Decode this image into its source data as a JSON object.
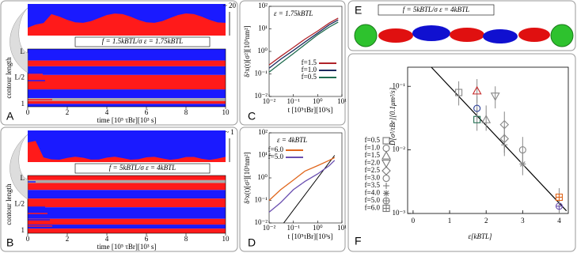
{
  "chart_data": [
    {
      "type": "kymograph",
      "label": "A",
      "annotation": "f = 1.5kBTL/σ   ε = 1.75kBTL",
      "cluster_annotation": "~ 20",
      "ylabel": "contour length",
      "ytick_labels": [
        "L",
        "L/2",
        "1"
      ],
      "xlabel": "time [10⁵ τBr][10³ s]",
      "xlim": [
        0,
        10
      ],
      "xticks": [
        0,
        2,
        4,
        6,
        8,
        10
      ]
    },
    {
      "type": "kymograph",
      "label": "B",
      "annotation": "f = 5kBTL/σ   ε = 4kBTL",
      "cluster_annotation": "~ 1",
      "ylabel": "contour length",
      "ytick_labels": [
        "L",
        "L/2",
        "1"
      ],
      "xlabel": "time [10⁵ τBr][10³ s]",
      "xlim": [
        0,
        10
      ],
      "xticks": [
        0,
        2,
        4,
        6,
        8,
        10
      ]
    },
    {
      "type": "line",
      "label": "C",
      "annotation": "ε = 1.75kBTL",
      "log_scale": true,
      "xlabel": "t [10⁵τBr][10³s]",
      "ylabel": "δ²x(t)[σ²][10³nm²]",
      "x": [
        0.01,
        0.03,
        0.1,
        0.3,
        1,
        3,
        7
      ],
      "series": [
        {
          "name": "f=1.5",
          "color": "#b0232a",
          "values": [
            0.25,
            0.6,
            1.5,
            3.5,
            8,
            18,
            30
          ]
        },
        {
          "name": "f=1.0",
          "color": "#1c2a5e",
          "values": [
            0.18,
            0.45,
            1.1,
            2.6,
            6.5,
            15,
            25
          ]
        },
        {
          "name": "f=0.5",
          "color": "#1e6b4e",
          "values": [
            0.12,
            0.3,
            0.8,
            2,
            5.5,
            12,
            20
          ]
        }
      ],
      "xlim": [
        0.01,
        10
      ],
      "ylim": [
        0.01,
        100
      ],
      "xticks": [
        {
          "value": 0.01,
          "label": "10⁻²"
        },
        {
          "value": 0.1,
          "label": "10⁻¹"
        },
        {
          "value": 1,
          "label": "10⁰"
        },
        {
          "value": 10,
          "label": "10¹"
        }
      ],
      "yticks": [
        {
          "value": 0.01,
          "label": "10⁻²"
        },
        {
          "value": 0.1,
          "label": "10⁻¹"
        },
        {
          "value": 1,
          "label": "10⁰"
        },
        {
          "value": 10,
          "label": "10¹"
        },
        {
          "value": 100,
          "label": "10²"
        }
      ]
    },
    {
      "type": "line",
      "label": "D",
      "annotation": "ε = 4kBTL",
      "log_scale": true,
      "xlabel": "t [10⁵τBr][10³s]",
      "ylabel": "δ²x(t)[σ²][10³nm²]",
      "x": [
        0.01,
        0.03,
        0.1,
        0.3,
        1,
        3,
        5
      ],
      "series": [
        {
          "name": "f=6.0",
          "color": "#e0661c",
          "values": [
            0.1,
            0.3,
            0.8,
            2,
            3.5,
            6,
            8
          ]
        },
        {
          "name": "f=5.0",
          "color": "#6a4fb0",
          "values": [
            0.03,
            0.08,
            0.3,
            0.7,
            1.5,
            3.5,
            6
          ]
        }
      ],
      "reference_line": {
        "x": [
          0.04,
          5
        ],
        "values": [
          0.01,
          10
        ],
        "color": "#000000"
      },
      "xlim": [
        0.01,
        10
      ],
      "ylim": [
        0.01,
        100
      ],
      "xticks": [
        {
          "value": 0.01,
          "label": "10⁻²"
        },
        {
          "value": 0.1,
          "label": "10⁻¹"
        },
        {
          "value": 1,
          "label": "10⁰"
        },
        {
          "value": 10,
          "label": "10¹"
        }
      ],
      "yticks": [
        {
          "value": 0.01,
          "label": "10⁻²"
        },
        {
          "value": 0.1,
          "label": "10⁻¹"
        },
        {
          "value": 1,
          "label": "10⁰"
        },
        {
          "value": 10,
          "label": "10¹"
        },
        {
          "value": 100,
          "label": "10²"
        }
      ]
    },
    {
      "type": "scatter",
      "label": "F",
      "log_scale": true,
      "xlabel": "ε[kBTL]",
      "ylabel": "D[σ²/τBr][0.1μm²/s]",
      "series": [
        {
          "name": "f=0.5",
          "marker": "square",
          "x": [
            1.25,
            1.75
          ],
          "values": [
            0.08,
            0.03
          ],
          "err_low": [
            0.05,
            0.02
          ],
          "err_high": [
            0.12,
            0.045
          ],
          "colors": [
            "#888888",
            "#1e6b4e"
          ]
        },
        {
          "name": "f=1.0",
          "marker": "circle",
          "x": [
            1.75
          ],
          "values": [
            0.045
          ],
          "err_low": [
            0.03
          ],
          "err_high": [
            0.07
          ],
          "colors": [
            "#2a3f9a"
          ]
        },
        {
          "name": "f=1.5",
          "marker": "triangle",
          "x": [
            1.75,
            2.0
          ],
          "values": [
            0.085,
            0.03
          ],
          "err_low": [
            0.055,
            0.02
          ],
          "err_high": [
            0.13,
            0.05
          ],
          "colors": [
            "#c62828",
            "#888888"
          ]
        },
        {
          "name": "f=2.0",
          "marker": "down-triangle",
          "x": [
            2.25
          ],
          "values": [
            0.07
          ],
          "err_low": [
            0.045
          ],
          "err_high": [
            0.1
          ],
          "colors": [
            "#888888"
          ]
        },
        {
          "name": "f=2.5",
          "marker": "diamond",
          "x": [
            2.5,
            2.5
          ],
          "values": [
            0.025,
            0.015
          ],
          "err_low": [
            0.015,
            0.009
          ],
          "err_high": [
            0.04,
            0.024
          ],
          "colors": [
            "#888888",
            "#888888"
          ]
        },
        {
          "name": "f=3.0",
          "marker": "circle",
          "x": [
            3
          ],
          "values": [
            0.01
          ],
          "err_low": [
            0.006
          ],
          "err_high": [
            0.016
          ],
          "colors": [
            "#888888"
          ]
        },
        {
          "name": "f=3.5",
          "marker": "plus",
          "x": [
            2.5
          ],
          "values": [
            0.012
          ],
          "err_low": [
            0.008
          ],
          "err_high": [
            0.018
          ],
          "colors": [
            "#888888"
          ]
        },
        {
          "name": "f=4.0",
          "marker": "star",
          "x": [
            3
          ],
          "values": [
            0.006
          ],
          "err_low": [
            0.004
          ],
          "err_high": [
            0.009
          ],
          "colors": [
            "#888888"
          ]
        },
        {
          "name": "f=5.0",
          "marker": "crossed-circle",
          "x": [
            4
          ],
          "values": [
            0.0013
          ],
          "err_low": [
            0.001
          ],
          "err_high": [
            0.0017
          ],
          "colors": [
            "#6a4fb0"
          ]
        },
        {
          "name": "f=6.0",
          "marker": "boxed-plus",
          "x": [
            4
          ],
          "values": [
            0.0018
          ],
          "err_low": [
            0.0013
          ],
          "err_high": [
            0.0025
          ],
          "colors": [
            "#e0661c"
          ]
        }
      ],
      "fit_line": {
        "x": [
          0.5,
          4.2
        ],
        "values": [
          0.2,
          0.0011
        ],
        "color": "#000000"
      },
      "xlim": [
        -0.15,
        4.25
      ],
      "ylim": [
        0.001,
        0.2
      ],
      "xticks": [
        0,
        1,
        2,
        3,
        4
      ],
      "yticks": [
        {
          "value": 0.001,
          "label": "10⁻³"
        },
        {
          "value": 0.01,
          "label": "10⁻²"
        },
        {
          "value": 0.1,
          "label": "10⁻¹"
        }
      ]
    }
  ],
  "panel_e": {
    "label": "E",
    "annotation": "f = 5kBTL/σ   ε = 4kBTL"
  }
}
